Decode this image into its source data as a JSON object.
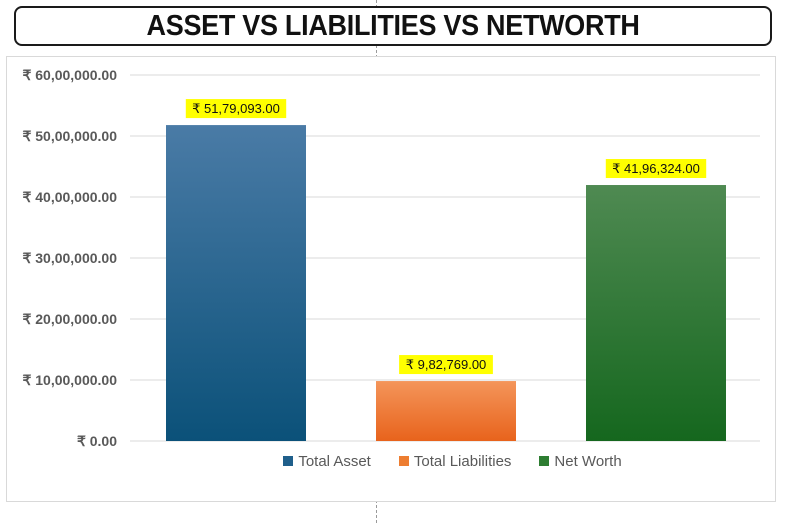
{
  "header": {
    "title": "ASSET VS LIABILITIES VS NETWORTH"
  },
  "chart_data": {
    "type": "bar",
    "title": "ASSET VS LIABILITIES VS NETWORTH",
    "categories": [
      "Total Asset",
      "Total Liabilities",
      "Net Worth"
    ],
    "values": [
      5179093,
      982769,
      4196324
    ],
    "data_labels": [
      "₹ 51,79,093.00",
      "₹ 9,82,769.00",
      "₹ 41,96,324.00"
    ],
    "colors": [
      "#1F5F8B",
      "#ED7D31",
      "#2E7D32"
    ],
    "ylim": [
      0,
      6000000
    ],
    "yticks": [
      0,
      1000000,
      2000000,
      3000000,
      4000000,
      5000000,
      6000000
    ],
    "ytick_labels": [
      "₹ 0.00",
      "₹ 10,00,000.00",
      "₹ 20,00,000.00",
      "₹ 30,00,000.00",
      "₹ 40,00,000.00",
      "₹ 50,00,000.00",
      "₹ 60,00,000.00"
    ],
    "xlabel": "",
    "ylabel": "",
    "grid": true,
    "legend": "bottom",
    "data_label_background": "#FFFF00"
  },
  "legend": {
    "items": [
      {
        "label": "Total Asset",
        "color": "#1F5F8B"
      },
      {
        "label": "Total Liabilities",
        "color": "#ED7D31"
      },
      {
        "label": "Net Worth",
        "color": "#2E7D32"
      }
    ]
  }
}
